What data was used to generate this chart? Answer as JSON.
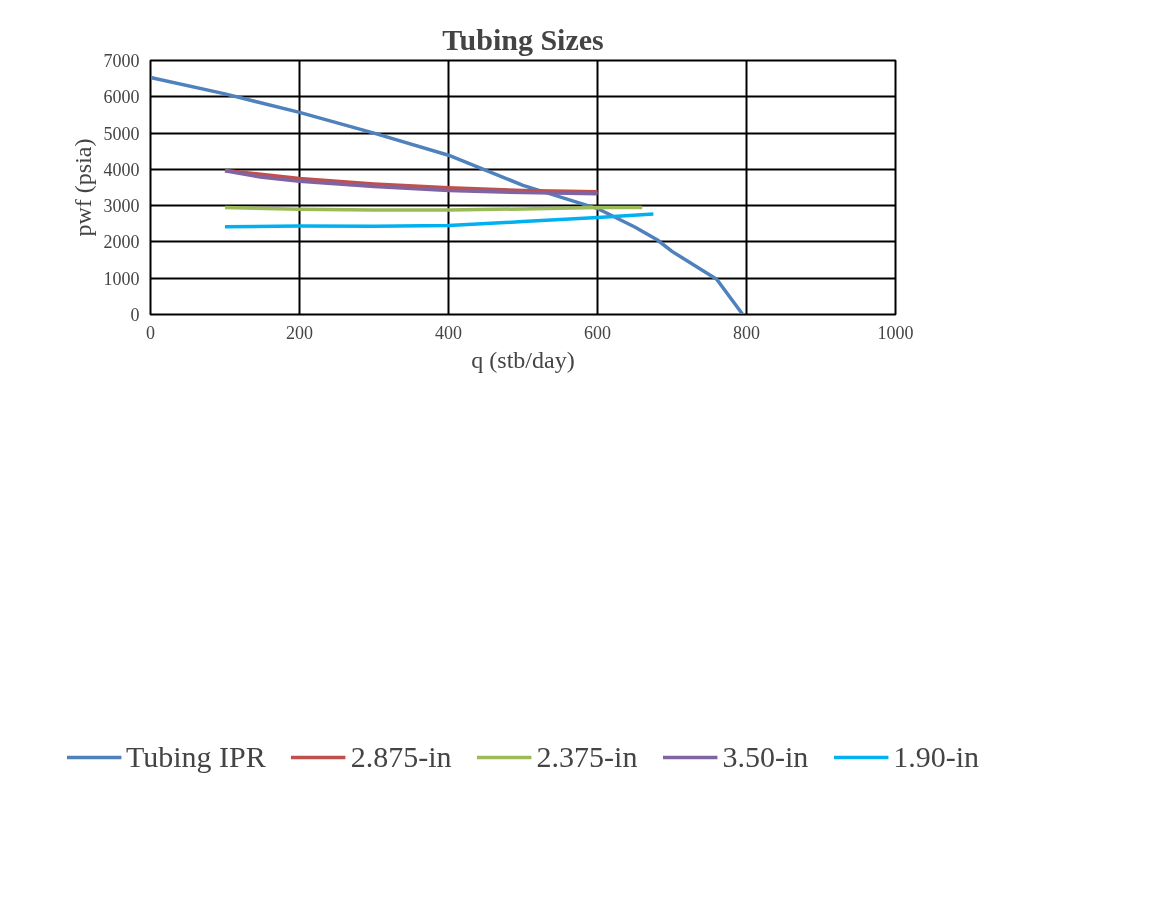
{
  "chart_data": {
    "type": "line",
    "title": "Tubing Sizes",
    "xlabel": "q (stb/day)",
    "ylabel": "pwf (psia)",
    "xlim": [
      0,
      1000
    ],
    "xticks": [
      0,
      200,
      400,
      600,
      800,
      1000
    ],
    "ylim": [
      0,
      7000
    ],
    "yticks": [
      0,
      1000,
      2000,
      3000,
      4000,
      5000,
      6000,
      7000
    ],
    "grid": true,
    "legend": "bottom",
    "marker": "none",
    "line_style": "solid",
    "series": [
      {
        "name": "Tubing IPR",
        "color": "#4f81bd",
        "x": [
          0,
          100,
          200,
          300,
          400,
          500,
          600,
          650,
          680,
          700,
          760,
          795
        ],
        "values": [
          6530,
          6080,
          5570,
          5000,
          4390,
          3560,
          2920,
          2410,
          2060,
          1740,
          970,
          0
        ]
      },
      {
        "name": "2.875-in",
        "color": "#c0504d",
        "x": [
          100,
          200,
          300,
          400,
          500,
          600
        ],
        "values": [
          3970,
          3750,
          3600,
          3490,
          3420,
          3380
        ]
      },
      {
        "name": "2.375-in",
        "color": "#9bbb59",
        "x": [
          100,
          200,
          300,
          400,
          500,
          600,
          660
        ],
        "values": [
          2950,
          2900,
          2880,
          2880,
          2910,
          2950,
          2950
        ]
      },
      {
        "name": "3.50-in",
        "color": "#8064a2",
        "x": [
          100,
          150,
          200,
          300,
          400,
          500,
          600
        ],
        "values": [
          3960,
          3780,
          3670,
          3530,
          3420,
          3360,
          3330
        ]
      },
      {
        "name": "1.90-in",
        "color": "#00b0f0",
        "x": [
          100,
          200,
          300,
          400,
          500,
          600,
          675
        ],
        "values": [
          2420,
          2440,
          2430,
          2450,
          2560,
          2670,
          2770
        ]
      }
    ]
  }
}
